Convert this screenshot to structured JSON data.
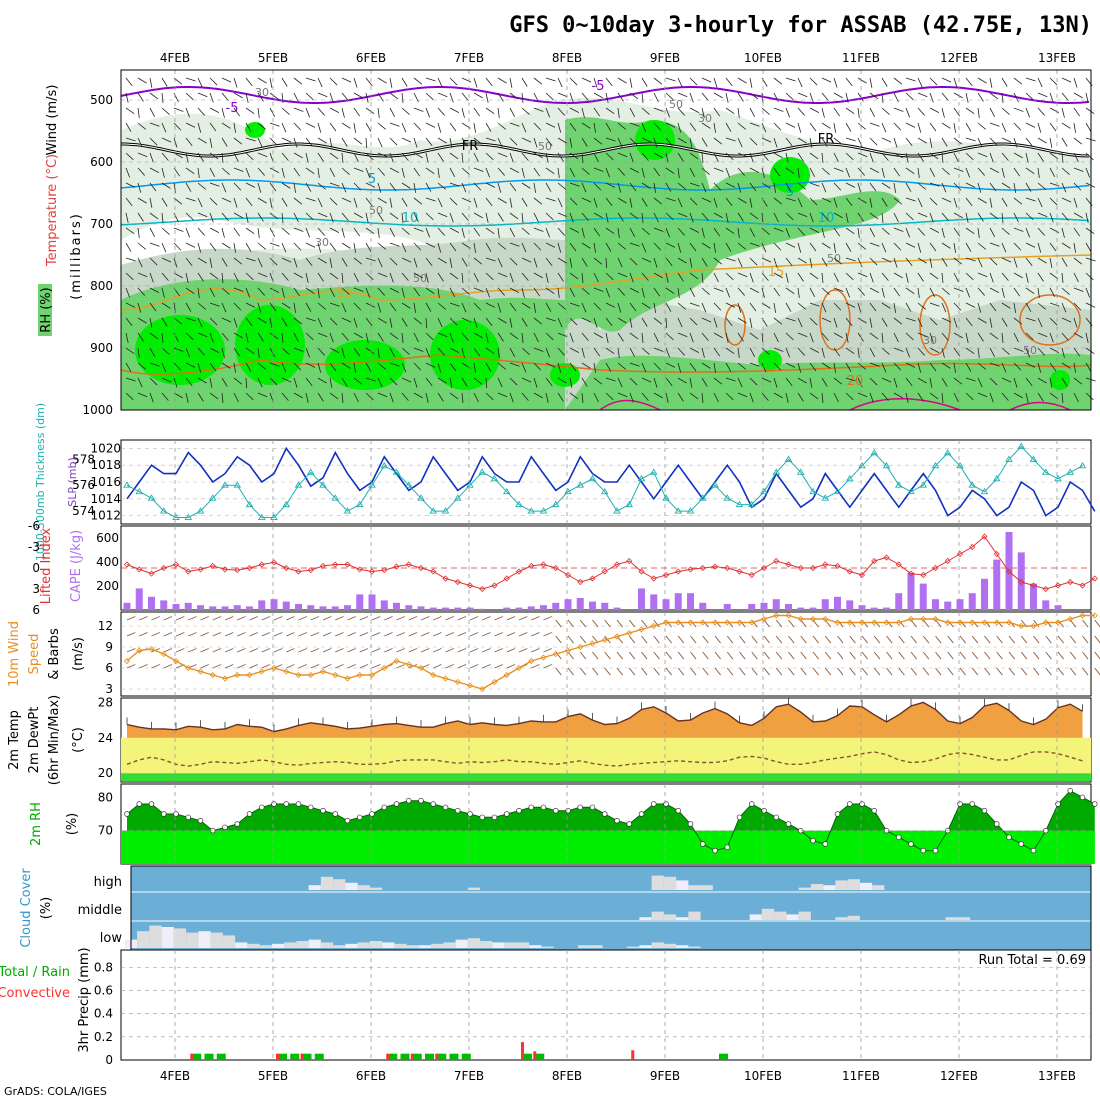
{
  "title": "GFS 0~10day 3-hourly for ASSAB (42.75E, 13N)",
  "credit": "GrADS: COLA/IGES",
  "dates": [
    "4FEB",
    "5FEB",
    "6FEB",
    "7FEB",
    "8FEB",
    "9FEB",
    "10FEB",
    "11FEB",
    "12FEB",
    "13FEB"
  ],
  "colors": {
    "rh_high": "#00ee00",
    "rh_mid": "#6fd36f",
    "rh_low": "#c8d8c8",
    "rh_faint": "#e3efe3",
    "temp_purple": "#8800cc",
    "temp_blue": "#0099ee",
    "temp_cyan": "#00b8c8",
    "temp_orange": "#e8a020",
    "temp_darkorange": "#e07018",
    "temp_magenta": "#dd0088",
    "slp": "#1030c0",
    "thickness": "#20b0b0",
    "lifted": "#e03030",
    "cape": "#b070f0",
    "wind": "#e89020",
    "t2m_fill": "#f0a040",
    "dew": "#885533",
    "band_yellow": "#f4f47a",
    "band_green": "#33dd33",
    "rh2m_dark": "#00aa00",
    "rh2m_light": "#00ee00",
    "cloud_bg": "#6baed6",
    "cloud_bar": "#dddddd",
    "precip_total": "#00bb00",
    "precip_conv": "#ff3030"
  },
  "panels": {
    "upper": {
      "ylabel_wind": "Wind (m/s)",
      "ylabel_temp": "Temperature (°C)",
      "ylabel_rh": "RH (%)",
      "ylabel_p": "(millibars)",
      "yticks": [
        "500",
        "600",
        "700",
        "800",
        "900",
        "1000"
      ],
      "contour_labels": [
        {
          "text": "-5",
          "color": "temp_purple"
        },
        {
          "text": "-5",
          "color": "temp_purple"
        },
        {
          "text": "FR",
          "color": "#000000"
        },
        {
          "text": "FR",
          "color": "#000000"
        },
        {
          "text": "5",
          "color": "temp_blue"
        },
        {
          "text": "5",
          "color": "temp_blue"
        },
        {
          "text": "10",
          "color": "temp_cyan"
        },
        {
          "text": "10",
          "color": "temp_cyan"
        },
        {
          "text": "15",
          "color": "temp_orange"
        },
        {
          "text": "15",
          "color": "temp_orange"
        },
        {
          "text": "20",
          "color": "temp_darkorange"
        }
      ],
      "rh_labels": [
        "30",
        "50",
        "30",
        "50",
        "50",
        "30",
        "50",
        "50",
        "30",
        "50"
      ]
    },
    "slp": {
      "ylabel_thick": "1000-500mb Thickness (dm)",
      "ylabel_slp": "SLP (mb)",
      "left_ticks": [
        "578",
        "576",
        "574"
      ],
      "right_ticks": [
        "1020",
        "1018",
        "1016",
        "1014",
        "1012"
      ]
    },
    "cape": {
      "ylabel_li": "Lifted Index",
      "ylabel_cape": "CAPE (J/kg)",
      "left_ticks": [
        "-6",
        "-3",
        "0",
        "3",
        "6"
      ],
      "right_ticks": [
        "600",
        "400",
        "200"
      ]
    },
    "wind10m": {
      "ylabel_a": "10m Wind",
      "ylabel_b": "Speed",
      "ylabel_c": "& Barbs",
      "unit": "(m/s)",
      "yticks": [
        "12",
        "9",
        "6",
        "3"
      ]
    },
    "t2m": {
      "ylabel_a": "2m Temp",
      "ylabel_b": "2m DewPt",
      "ylabel_c": "(6hr Min/Max)",
      "unit": "(°C)",
      "yticks": [
        "28",
        "24",
        "20"
      ]
    },
    "rh2m": {
      "ylabel": "2m RH",
      "unit": "(%)",
      "yticks": [
        "80",
        "70"
      ]
    },
    "cloud": {
      "ylabel": "Cloud Cover",
      "unit": "(%)",
      "levels": [
        "high",
        "middle",
        "low"
      ]
    },
    "precip": {
      "ylabel_a": "Total / Rain",
      "ylabel_b": "Convective",
      "ylabel_c": "3hr Precip (mm)",
      "yticks": [
        "0.8",
        "0.6",
        "0.4",
        "0.2",
        "0"
      ],
      "run_total": "Run Total = 0.69"
    }
  },
  "chart_data": {
    "type": "line",
    "title": "GFS 0~10day 3-hourly for ASSAB (42.75E, 13N)",
    "x_dates": [
      "4FEB",
      "5FEB",
      "6FEB",
      "7FEB",
      "8FEB",
      "9FEB",
      "10FEB",
      "11FEB",
      "12FEB",
      "13FEB"
    ],
    "steps_per_day": 8,
    "slp_mb": [
      1014,
      1016,
      1018,
      1017,
      1017,
      1019.5,
      1018,
      1016,
      1017,
      1019,
      1018,
      1016,
      1017,
      1020,
      1018,
      1015.5,
      1016.5,
      1019.5,
      1017,
      1015,
      1016,
      1019,
      1017,
      1015,
      1016,
      1019,
      1017,
      1015,
      1016,
      1019,
      1017,
      1016,
      1016,
      1019,
      1017,
      1015,
      1016,
      1019,
      1017,
      1016,
      1016,
      1018,
      1016,
      1014,
      1016,
      1018,
      1016,
      1014,
      1016,
      1018,
      1016,
      1013,
      1014,
      1017,
      1015,
      1013,
      1014,
      1017,
      1015,
      1013,
      1015,
      1017,
      1015,
      1013,
      1015,
      1017,
      1015,
      1012,
      1013,
      1015,
      1014,
      1012,
      1013,
      1016,
      1015,
      1012,
      1013,
      1016,
      1015,
      1012.5
    ],
    "thickness_dm": [
      576,
      575.5,
      575,
      574,
      573.5,
      573.5,
      574,
      575,
      576,
      576,
      574.5,
      573.5,
      573.5,
      574.5,
      576,
      577,
      576,
      575,
      574,
      574.5,
      576,
      577.5,
      577,
      576,
      575,
      574,
      574,
      575,
      576,
      577,
      576.5,
      575.5,
      574.5,
      574,
      574,
      574.5,
      575.5,
      576,
      576.5,
      575.5,
      574,
      574.5,
      576.5,
      577,
      575,
      574,
      574,
      575,
      576,
      575,
      574.5,
      574.5,
      575.5,
      577,
      578,
      577,
      575.5,
      575,
      575.5,
      576.5,
      577.5,
      578.5,
      577.5,
      576,
      575.5,
      576,
      577.5,
      578.5,
      577.5,
      576,
      575.5,
      576.5,
      578,
      579,
      578,
      577,
      576.5,
      577,
      577.5
    ],
    "lifted_index": [
      -0.5,
      0.2,
      0.8,
      0,
      -0.5,
      0.5,
      0.2,
      -0.3,
      0.2,
      0.3,
      0,
      -0.5,
      -0.8,
      0,
      0.5,
      0.3,
      -0.3,
      -0.5,
      -0.5,
      0.2,
      0.5,
      0.3,
      -0.2,
      -0.5,
      0,
      0.5,
      1.5,
      2,
      2.5,
      3,
      2.5,
      1.5,
      0.5,
      -0.3,
      -0.5,
      0,
      1,
      2,
      1.5,
      0.5,
      -0.5,
      -1,
      0.5,
      1.5,
      1,
      0.5,
      0.2,
      0,
      -0.2,
      0,
      0.5,
      1,
      0,
      -1,
      -0.5,
      0,
      0,
      -0.5,
      -0.3,
      0.5,
      1,
      -1,
      -1.5,
      -0.5,
      0.8,
      1,
      0,
      -1,
      -2,
      -3,
      -4.5,
      -2,
      0.5,
      2,
      2.5,
      3,
      2.5,
      2,
      2.5,
      1.5
    ],
    "cape_jkg": [
      60,
      180,
      110,
      80,
      50,
      60,
      40,
      30,
      30,
      40,
      30,
      80,
      90,
      70,
      50,
      40,
      30,
      30,
      40,
      130,
      130,
      80,
      60,
      40,
      30,
      20,
      20,
      20,
      20,
      10,
      0,
      20,
      20,
      30,
      40,
      60,
      90,
      100,
      70,
      60,
      20,
      0,
      180,
      130,
      90,
      140,
      140,
      60,
      0,
      50,
      0,
      50,
      60,
      90,
      50,
      20,
      20,
      90,
      110,
      80,
      40,
      20,
      20,
      140,
      310,
      220,
      90,
      70,
      90,
      140,
      260,
      420,
      650,
      480,
      220,
      80,
      40,
      0,
      0,
      0
    ],
    "wind_speed_ms": [
      7,
      8.5,
      8.7,
      8,
      7,
      6,
      5.5,
      5,
      4.5,
      5,
      5,
      5.5,
      6,
      5.5,
      5,
      5,
      5.5,
      5,
      4.5,
      5,
      5,
      6,
      7,
      6.5,
      6,
      5,
      4.5,
      4,
      3.5,
      3,
      4,
      5,
      6,
      7,
      7.5,
      8,
      8.5,
      9,
      9.5,
      10,
      10.5,
      11,
      11.5,
      12,
      12.5,
      12.5,
      12.5,
      12.5,
      12.5,
      12.5,
      12.5,
      12.5,
      13,
      13.5,
      13.5,
      13,
      13,
      13,
      12.5,
      12.5,
      12.5,
      12.5,
      12.5,
      12.5,
      13,
      13,
      13,
      12.5,
      12.5,
      12.5,
      12.5,
      12.5,
      12.5,
      12,
      12,
      12.5,
      12.5,
      13,
      13.5,
      13.5
    ],
    "temp_2m_c": [
      25.5,
      25.2,
      25,
      25,
      24.9,
      25.3,
      25.2,
      24.9,
      25,
      25.5,
      25.3,
      25.2,
      24.7,
      25,
      25.4,
      25.7,
      25.5,
      25.3,
      25,
      25.1,
      25.3,
      25.5,
      25.6,
      25.4,
      25.2,
      25.2,
      25.6,
      25.9,
      25.5,
      25.7,
      25.5,
      25.4,
      25.6,
      25.9,
      25.8,
      25.8,
      26.4,
      26.7,
      26,
      25.5,
      25.6,
      26.2,
      27.2,
      27.5,
      26.8,
      25.9,
      26,
      26.8,
      27.3,
      26.7,
      25.7,
      25.4,
      26.2,
      27.5,
      27.8,
      26.9,
      25.8,
      25.9,
      26.5,
      27.6,
      27.5,
      26.6,
      25.8,
      26.6,
      27.6,
      28,
      27.2,
      25.9,
      25.6,
      26.3,
      27.6,
      27.9,
      27.1,
      25.9,
      25.5,
      26.1,
      27.4,
      27.8,
      27
    ],
    "dewpoint_2m_c": [
      21,
      21.5,
      21.8,
      21.5,
      21,
      20.8,
      21,
      21.3,
      21.2,
      21.1,
      21.3,
      21.5,
      21.3,
      21,
      20.9,
      21.1,
      21.2,
      21.3,
      21.2,
      21,
      21,
      21.1,
      21.4,
      21.5,
      21.5,
      21.5,
      21.3,
      21.1,
      21.3,
      21.2,
      21.3,
      21.5,
      21.3,
      21.3,
      21.1,
      21,
      21.2,
      21.4,
      21.1,
      20.9,
      20.8,
      21,
      21.1,
      21.2,
      21.3,
      21.4,
      21.3,
      21.2,
      21.2,
      21.4,
      21.8,
      21.9,
      21.7,
      21.3,
      21,
      21,
      21.2,
      21.5,
      21.7,
      21.9,
      22.2,
      22.4,
      22.1,
      21.5,
      21.2,
      21.3,
      21.6,
      22.1,
      22.3,
      22.1,
      21.8,
      21.5,
      21.5,
      22,
      22.4,
      22.4,
      22.2,
      21.8,
      21.4
    ],
    "rh_2m_pct": [
      75,
      78,
      78,
      75,
      75,
      74,
      73,
      70,
      71,
      72,
      75,
      77,
      78,
      78,
      78,
      77,
      76,
      75,
      73,
      74,
      75,
      77,
      78,
      79,
      79,
      78,
      77,
      76,
      75,
      74,
      74,
      75,
      76,
      77,
      77,
      76,
      76,
      77,
      77,
      75,
      73,
      72,
      75,
      78,
      78,
      76,
      72,
      66,
      64,
      65,
      74,
      78,
      76,
      74,
      72,
      70,
      67,
      66,
      75,
      78,
      78,
      76,
      70,
      68,
      66,
      64,
      64,
      70,
      78,
      78,
      76,
      72,
      68,
      66,
      64,
      70,
      78,
      82,
      80,
      78
    ],
    "cloud_high_pct": [
      0,
      0,
      0,
      0,
      0,
      0,
      0,
      0,
      0,
      0,
      0,
      0,
      0,
      0,
      0,
      20,
      55,
      45,
      30,
      20,
      10,
      0,
      0,
      0,
      0,
      0,
      0,
      0,
      10,
      0,
      0,
      0,
      0,
      0,
      0,
      0,
      0,
      0,
      0,
      0,
      0,
      0,
      0,
      60,
      55,
      40,
      20,
      20,
      0,
      0,
      0,
      0,
      0,
      0,
      0,
      10,
      25,
      20,
      40,
      45,
      30,
      20,
      0,
      0,
      0,
      0,
      0,
      0,
      0,
      0,
      0,
      0,
      0,
      0,
      0,
      0,
      0,
      0,
      0,
      0
    ],
    "cloud_mid_pct": [
      0,
      0,
      0,
      0,
      0,
      0,
      0,
      0,
      0,
      0,
      0,
      0,
      0,
      0,
      0,
      0,
      0,
      0,
      0,
      0,
      0,
      0,
      0,
      0,
      0,
      0,
      0,
      0,
      0,
      0,
      0,
      0,
      0,
      0,
      0,
      0,
      0,
      0,
      0,
      0,
      0,
      0,
      10,
      30,
      20,
      10,
      30,
      0,
      0,
      0,
      0,
      20,
      40,
      30,
      20,
      30,
      0,
      0,
      10,
      15,
      0,
      0,
      0,
      0,
      0,
      0,
      0,
      10,
      10,
      0,
      0,
      0,
      0,
      0,
      0,
      0,
      0,
      0,
      0,
      0
    ],
    "cloud_low_pct": [
      30,
      60,
      80,
      75,
      70,
      55,
      60,
      55,
      45,
      20,
      15,
      10,
      15,
      20,
      25,
      30,
      20,
      10,
      15,
      20,
      25,
      20,
      15,
      10,
      10,
      15,
      20,
      30,
      35,
      25,
      20,
      20,
      20,
      10,
      5,
      0,
      0,
      10,
      10,
      0,
      0,
      5,
      10,
      20,
      15,
      10,
      5,
      0,
      0,
      0,
      0,
      0,
      0,
      0,
      0,
      0,
      0,
      0,
      0,
      0,
      0,
      0,
      0,
      0,
      0,
      0,
      0,
      0,
      0,
      0,
      0,
      0,
      0,
      0,
      0,
      0,
      0,
      0,
      0,
      0
    ],
    "precip_total_mm": [
      0,
      0,
      0,
      0,
      0,
      0.02,
      0.02,
      0.02,
      0,
      0,
      0,
      0,
      0.02,
      0.02,
      0.02,
      0.02,
      0,
      0,
      0,
      0,
      0,
      0.02,
      0.02,
      0.02,
      0.02,
      0.02,
      0.02,
      0.02,
      0,
      0,
      0,
      0,
      0.02,
      0.02,
      0,
      0,
      0,
      0,
      0,
      0,
      0,
      0,
      0,
      0,
      0,
      0,
      0,
      0,
      0.02,
      0,
      0,
      0,
      0,
      0,
      0,
      0,
      0,
      0,
      0,
      0,
      0,
      0,
      0,
      0,
      0,
      0,
      0,
      0,
      0,
      0,
      0,
      0,
      0,
      0,
      0,
      0,
      0,
      0,
      0,
      0
    ],
    "precip_conv_mm": [
      0,
      0,
      0,
      0,
      0,
      0.02,
      0,
      0,
      0,
      0,
      0,
      0,
      0.02,
      0,
      0.02,
      0,
      0,
      0,
      0,
      0,
      0,
      0.02,
      0,
      0.02,
      0,
      0.02,
      0,
      0,
      0,
      0,
      0,
      0,
      0.12,
      0.04,
      0,
      0,
      0,
      0,
      0,
      0,
      0,
      0.05,
      0,
      0,
      0,
      0,
      0,
      0,
      0,
      0,
      0,
      0,
      0,
      0,
      0,
      0,
      0,
      0,
      0,
      0,
      0,
      0,
      0,
      0,
      0,
      0,
      0,
      0,
      0,
      0,
      0,
      0,
      0,
      0,
      0,
      0,
      0,
      0,
      0,
      0
    ],
    "run_total_mm": 0.69
  }
}
